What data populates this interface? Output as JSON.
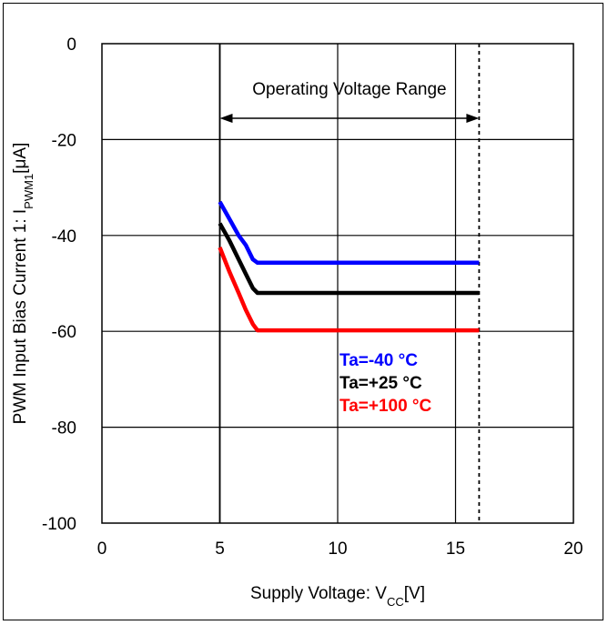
{
  "chart_data": {
    "type": "line",
    "title": "",
    "xlabel": {
      "main": "Supply Voltage: V",
      "sub": "CC",
      "unit": "[V]"
    },
    "ylabel": {
      "main": "PWM Input Bias Current 1: I",
      "sub": "PWM1",
      "unit": "[μA]"
    },
    "xlim": [
      0,
      20
    ],
    "ylim": [
      -100,
      0
    ],
    "xticks": [
      0,
      5,
      10,
      15,
      20
    ],
    "yticks": [
      0,
      -20,
      -40,
      -60,
      -80,
      -100
    ],
    "xtick_labels": [
      "0",
      "5",
      "10",
      "15",
      "20"
    ],
    "ytick_labels": [
      "0",
      "-20",
      "-40",
      "-60",
      "-80",
      "-100"
    ],
    "grid": true,
    "annotation": {
      "text": "Operating Voltage Range",
      "x_start": 5,
      "x_end": 16
    },
    "reference_lines": [
      {
        "x": 5,
        "style": "solid"
      },
      {
        "x": 16,
        "style": "dashed"
      }
    ],
    "series": [
      {
        "name": "Ta=-40 °C",
        "color": "#0000ff",
        "x": [
          5.0,
          5.4,
          5.8,
          6.1,
          6.4,
          6.6,
          16.0
        ],
        "y": [
          -33.0,
          -36.5,
          -40.0,
          -42.0,
          -45.0,
          -45.7,
          -45.7
        ]
      },
      {
        "name": "Ta=+25 °C",
        "color": "#000000",
        "x": [
          5.0,
          5.4,
          5.8,
          6.1,
          6.4,
          6.6,
          16.0
        ],
        "y": [
          -37.5,
          -41.0,
          -45.0,
          -48.0,
          -51.0,
          -52.0,
          -52.0
        ]
      },
      {
        "name": "Ta=+100 °C",
        "color": "#ff0000",
        "x": [
          5.0,
          5.4,
          5.8,
          6.1,
          6.4,
          6.6,
          16.0
        ],
        "y": [
          -42.5,
          -47.5,
          -52.0,
          -55.5,
          -58.5,
          -59.8,
          -59.8
        ]
      }
    ]
  }
}
